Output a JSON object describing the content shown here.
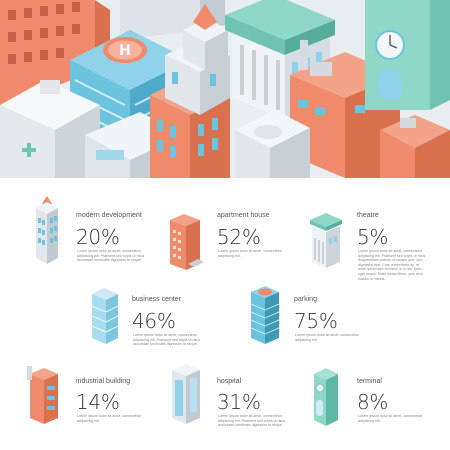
{
  "stats": [
    {
      "label": "modern development",
      "percent": "20%",
      "building_icon": "skyscraper-icon",
      "desc": "Lorem ipsum dolor sit amet, consectetur adipiscing elit. Praesent sed turpis ut risus accumsan venenatis dignissim at neque."
    },
    {
      "label": "apartment house",
      "percent": "52%",
      "building_icon": "apartment-house-icon",
      "desc": "Lorem ipsum dolor sit amet, consectetur adipiscing elit."
    },
    {
      "label": "theatre",
      "percent": "5%",
      "building_icon": "theatre-icon",
      "desc": "Lorem ipsum dolor sit amet, consectetur adipiscing elit. Praesent sed turpis ut risus. Suspendisse potenti, ut cursus quis, sed dignissim erat. Cras consectetur ac, et amet ipsum sem ferment, in in dui. Nam eget neque. Nulla luctus libero, quis arcu massa ut mauris."
    },
    {
      "label": "business center",
      "percent": "46%",
      "building_icon": "business-center-icon",
      "desc": "Lorem ipsum dolor sit amet, consectetur adipiscing elit. Praesent sed turpis ut risus accumsan venenatis dignissim at neque."
    },
    {
      "label": "parking",
      "percent": "75%",
      "building_icon": "parking-icon",
      "desc": "Lorem ipsum dolor sit amet, consectetur adipiscing elit."
    },
    {
      "label": "industrial building",
      "percent": "14%",
      "building_icon": "industrial-building-icon",
      "desc": "Lorem ipsum dolor sit amet, consectetur adipiscing elit."
    },
    {
      "label": "hospital",
      "percent": "31%",
      "building_icon": "hospital-icon",
      "desc": "Lorem ipsum dolor sit amet, consectetur adipiscing elit. Praesent sed turpis ut risus accumsan venenatis dignissim at neque."
    },
    {
      "label": "terminal",
      "percent": "8%",
      "building_icon": "terminal-icon",
      "desc": "Lorem ipsum dolor sit amet, consectetur adipiscing elit."
    }
  ],
  "hero": {
    "image": "isometric-city-illustration",
    "helipad_letter": "H"
  },
  "colors": {
    "orange": "#ef8a6a",
    "blue": "#6cc3de",
    "mint": "#8fd8c8",
    "white": "#f3f6f8",
    "gray": "#d8dde2"
  }
}
